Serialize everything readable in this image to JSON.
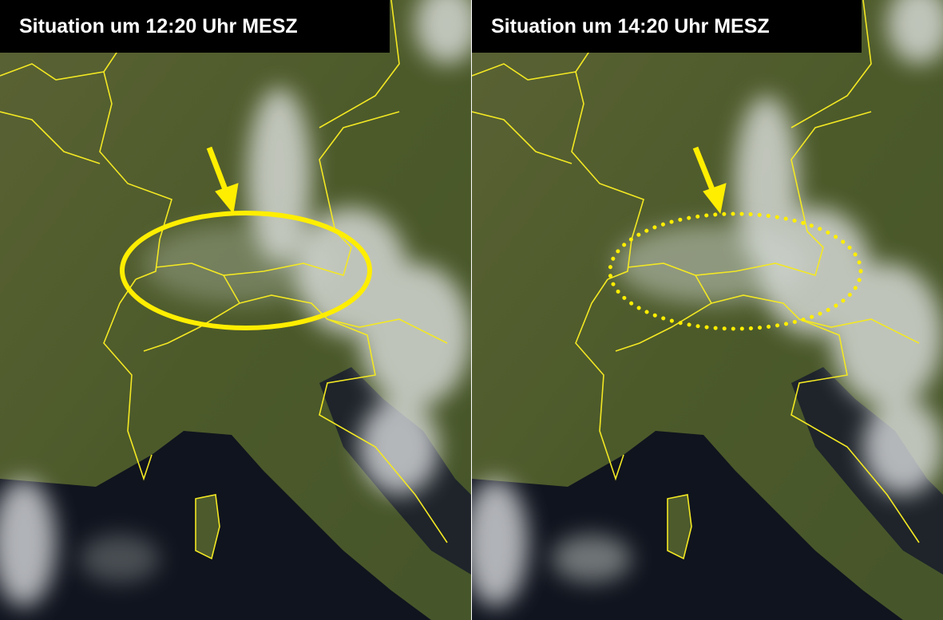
{
  "panels": [
    {
      "title": "Situation um 12:20 Uhr MESZ",
      "marker": "solid-ellipse"
    },
    {
      "title": "Situation um 14:20 Uhr MESZ",
      "marker": "dotted-ellipse"
    }
  ],
  "colors": {
    "land": "#4f5d2c",
    "sea": "#10141e",
    "cloud": "#e6e8ea",
    "borders": "#f3e823",
    "annotation": "#ffee00",
    "title_bg": "#000000",
    "title_text": "#ffffff"
  }
}
